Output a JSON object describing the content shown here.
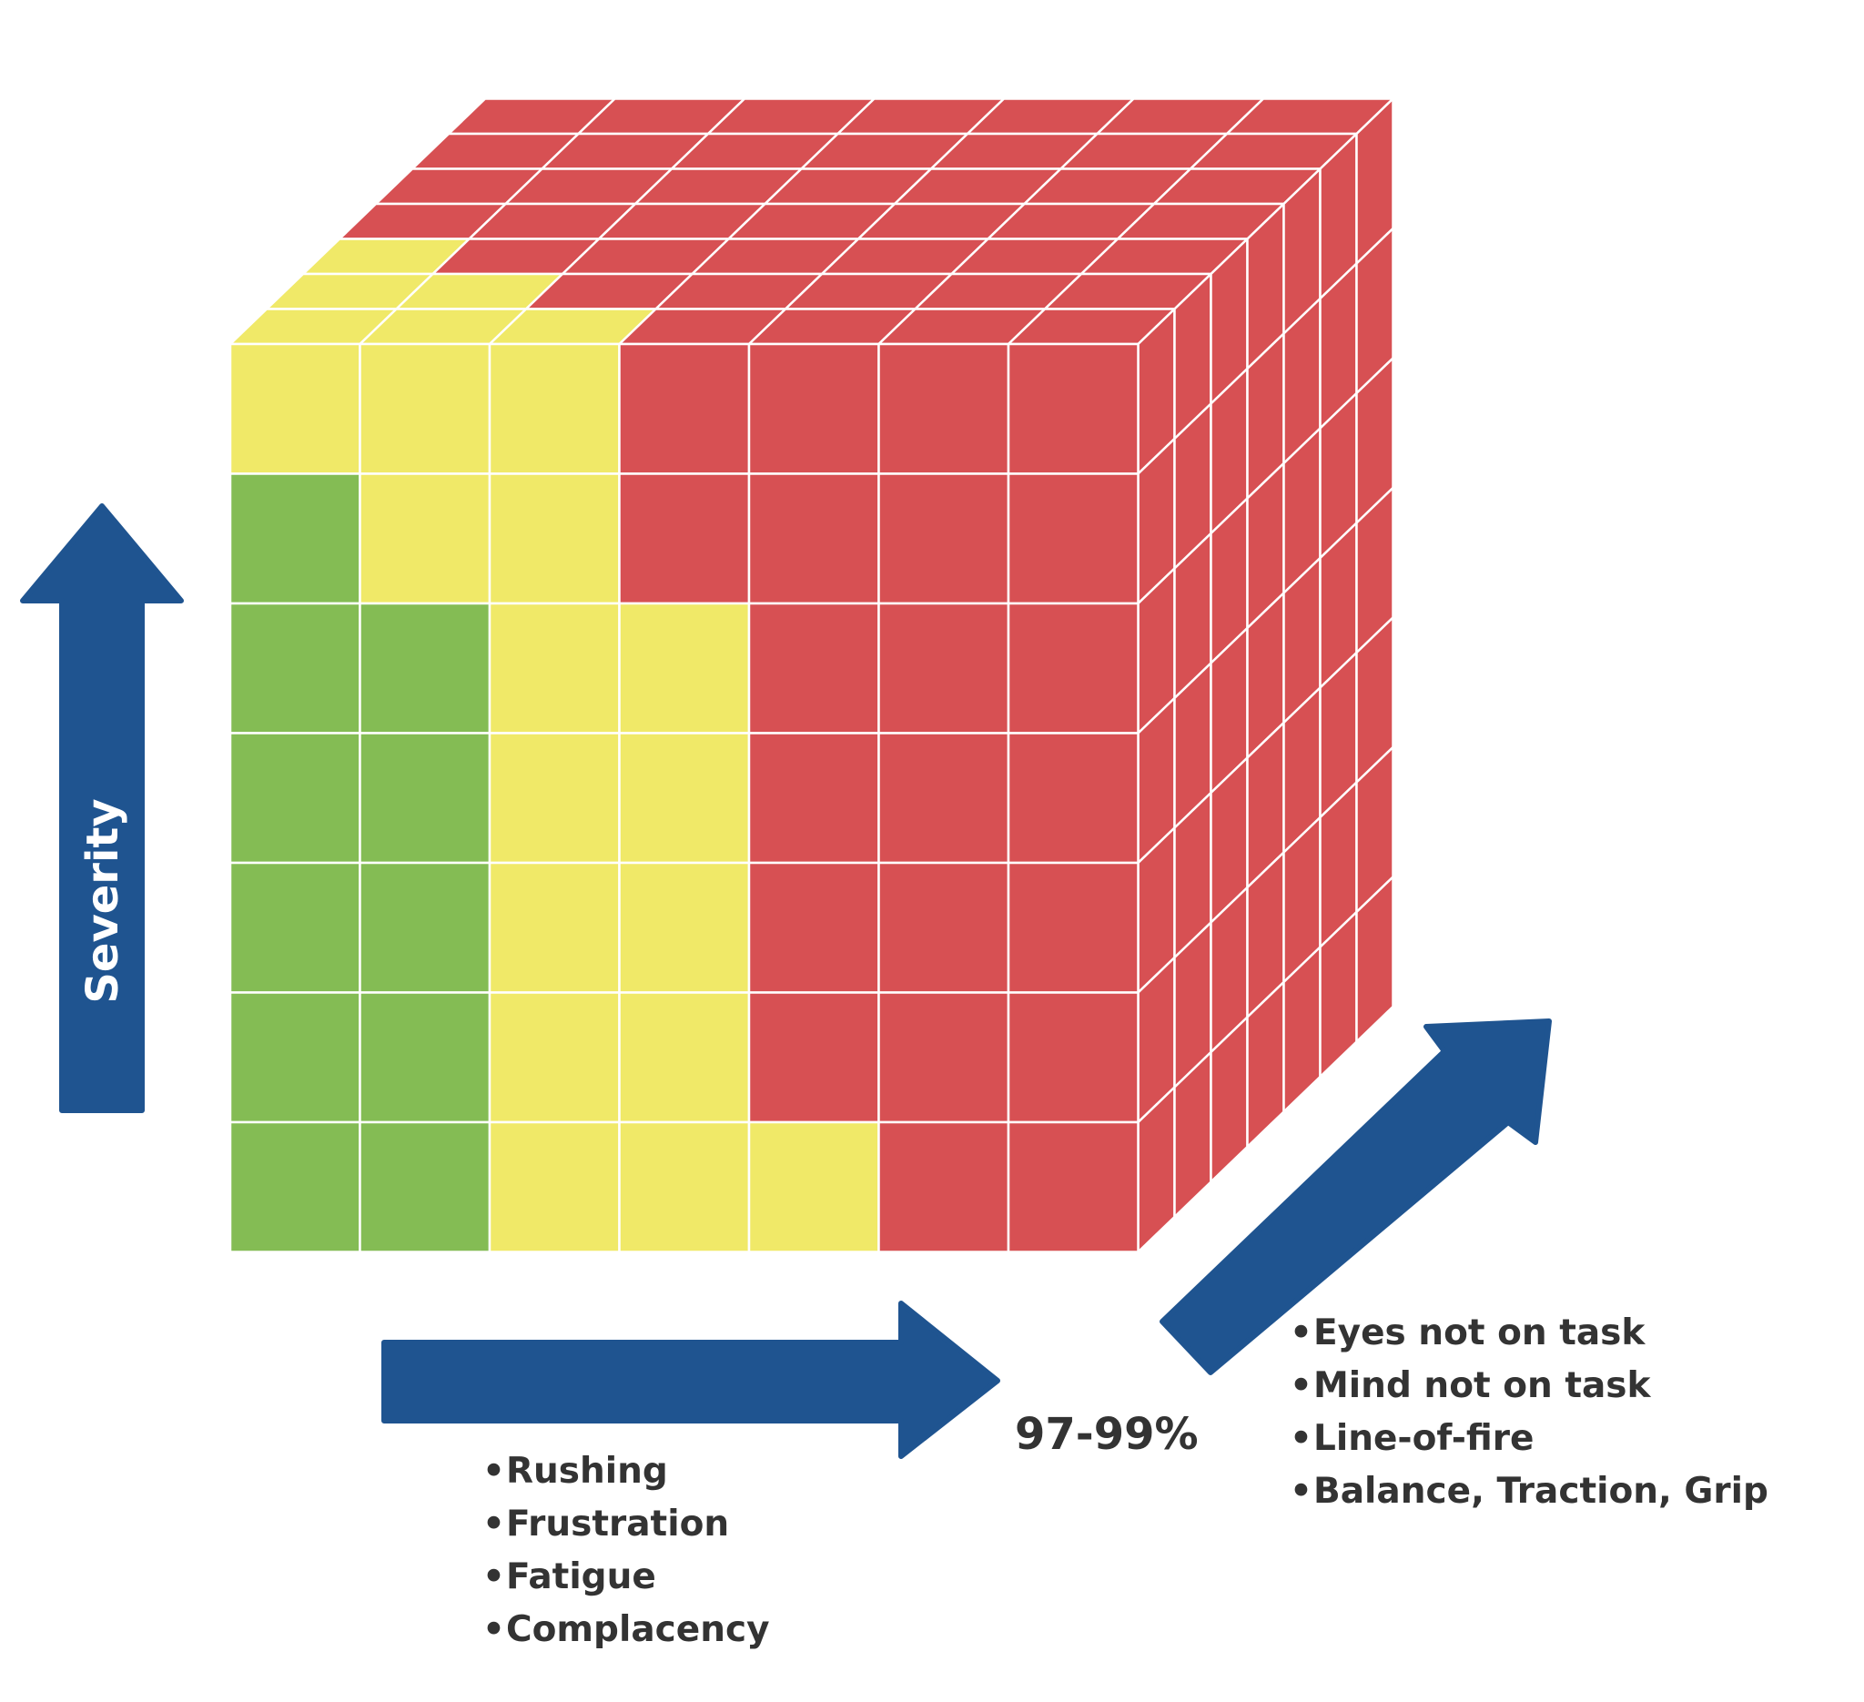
{
  "colors": {
    "green": "#84bc54",
    "yellow": "#f0e968",
    "red": "#d75053",
    "arrow": "#1f5490",
    "gridline": "#ffffff",
    "text": "#333333"
  },
  "cube": {
    "front_grid": [
      [
        "Y",
        "Y",
        "Y",
        "R",
        "R",
        "R",
        "R"
      ],
      [
        "G",
        "Y",
        "Y",
        "R",
        "R",
        "R",
        "R"
      ],
      [
        "G",
        "G",
        "Y",
        "Y",
        "R",
        "R",
        "R"
      ],
      [
        "G",
        "G",
        "Y",
        "Y",
        "R",
        "R",
        "R"
      ],
      [
        "G",
        "G",
        "Y",
        "Y",
        "R",
        "R",
        "R"
      ],
      [
        "G",
        "G",
        "Y",
        "Y",
        "R",
        "R",
        "R"
      ],
      [
        "G",
        "G",
        "Y",
        "Y",
        "Y",
        "R",
        "R"
      ]
    ],
    "top_grid": [
      [
        "R",
        "R",
        "R",
        "R",
        "R",
        "R",
        "R"
      ],
      [
        "R",
        "R",
        "R",
        "R",
        "R",
        "R",
        "R"
      ],
      [
        "R",
        "R",
        "R",
        "R",
        "R",
        "R",
        "R"
      ],
      [
        "R",
        "R",
        "R",
        "R",
        "R",
        "R",
        "R"
      ],
      [
        "Y",
        "R",
        "R",
        "R",
        "R",
        "R",
        "R"
      ],
      [
        "Y",
        "Y",
        "R",
        "R",
        "R",
        "R",
        "R"
      ],
      [
        "Y",
        "Y",
        "Y",
        "R",
        "R",
        "R",
        "R"
      ]
    ],
    "side_color": "R"
  },
  "axes": {
    "severity_label": "Severity",
    "percentage": "97-99%"
  },
  "states_list": {
    "items": [
      "Rushing",
      "Frustration",
      "Fatigue",
      "Complacency"
    ]
  },
  "errors_list": {
    "items": [
      "Eyes not on task",
      "Mind not on task",
      "Line-of-fire",
      "Balance, Traction, Grip"
    ]
  },
  "bullet_char": "•"
}
